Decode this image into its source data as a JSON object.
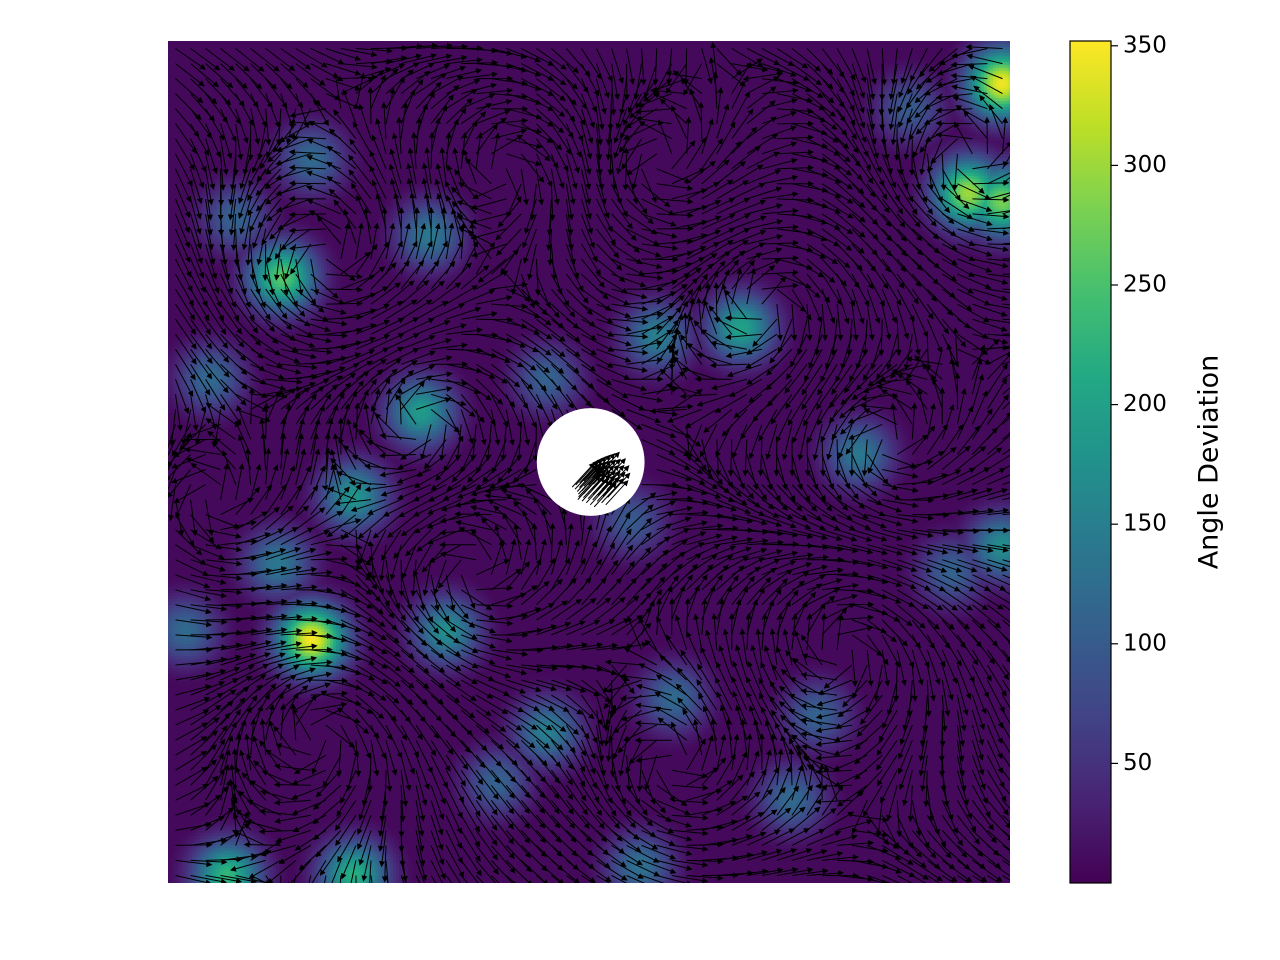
{
  "chart_data": {
    "type": "heatmap",
    "subtype": "quiver-over-heatmap",
    "title": "",
    "xlabel": "",
    "ylabel": "",
    "axes_visible": false,
    "grid": false,
    "colormap": "viridis",
    "colorbar": {
      "label": "Angle Deviation",
      "range": [
        0,
        352
      ],
      "ticks": [
        50,
        100,
        150,
        200,
        250,
        300,
        350
      ],
      "tick_labels": [
        "50",
        "100",
        "150",
        "200",
        "250",
        "300",
        "350"
      ],
      "placement": "right"
    },
    "field": {
      "x_range": [
        0,
        1
      ],
      "y_range": [
        0,
        1
      ],
      "background_level": 8,
      "obstacle": {
        "shape": "circle",
        "center": [
          0.502,
          0.5
        ],
        "radius": 0.064,
        "fill": "#ffffff"
      },
      "hotspots": [
        {
          "x": 0.17,
          "y": 0.29,
          "value": 350
        },
        {
          "x": 0.135,
          "y": 0.72,
          "value": 260
        },
        {
          "x": 0.95,
          "y": 0.82,
          "value": 300
        },
        {
          "x": 0.99,
          "y": 0.95,
          "value": 345
        },
        {
          "x": 0.99,
          "y": 0.81,
          "value": 280
        },
        {
          "x": 0.68,
          "y": 0.66,
          "value": 200
        },
        {
          "x": 0.58,
          "y": 0.65,
          "value": 150
        },
        {
          "x": 0.3,
          "y": 0.56,
          "value": 190
        },
        {
          "x": 0.22,
          "y": 0.46,
          "value": 180
        },
        {
          "x": 0.17,
          "y": 0.86,
          "value": 120
        },
        {
          "x": 0.08,
          "y": 0.79,
          "value": 110
        },
        {
          "x": 0.13,
          "y": 0.38,
          "value": 140
        },
        {
          "x": 0.33,
          "y": 0.3,
          "value": 170
        },
        {
          "x": 0.07,
          "y": 0.01,
          "value": 230
        },
        {
          "x": 0.22,
          "y": 0.01,
          "value": 220
        },
        {
          "x": 0.45,
          "y": 0.18,
          "value": 150
        },
        {
          "x": 0.82,
          "y": 0.51,
          "value": 140
        },
        {
          "x": 0.39,
          "y": 0.12,
          "value": 110
        },
        {
          "x": 0.6,
          "y": 0.22,
          "value": 120
        },
        {
          "x": 0.05,
          "y": 0.6,
          "value": 120
        },
        {
          "x": 0.93,
          "y": 0.37,
          "value": 110
        },
        {
          "x": 0.99,
          "y": 0.4,
          "value": 170
        },
        {
          "x": 0.55,
          "y": 0.43,
          "value": 100
        },
        {
          "x": 0.77,
          "y": 0.2,
          "value": 110
        },
        {
          "x": 0.02,
          "y": 0.3,
          "value": 120
        },
        {
          "x": 0.88,
          "y": 0.92,
          "value": 100
        },
        {
          "x": 0.56,
          "y": 0.02,
          "value": 130
        },
        {
          "x": 0.31,
          "y": 0.77,
          "value": 140
        },
        {
          "x": 0.74,
          "y": 0.1,
          "value": 120
        },
        {
          "x": 0.45,
          "y": 0.6,
          "value": 110
        }
      ],
      "quiver": {
        "color": "#000000",
        "grid": [
          56,
          56
        ],
        "vortices": [
          {
            "x": 0.19,
            "y": 0.74,
            "strength": 1.0,
            "sign": 1
          },
          {
            "x": 0.71,
            "y": 0.69,
            "strength": 0.9,
            "sign": -1
          },
          {
            "x": 0.36,
            "y": 0.37,
            "strength": 0.9,
            "sign": 1
          },
          {
            "x": 0.8,
            "y": 0.28,
            "strength": 1.0,
            "sign": -1
          },
          {
            "x": 0.18,
            "y": 0.18,
            "strength": 0.8,
            "sign": -1
          },
          {
            "x": 0.95,
            "y": 0.86,
            "strength": 0.8,
            "sign": 1
          },
          {
            "x": 0.58,
            "y": 0.85,
            "strength": 0.7,
            "sign": 1
          },
          {
            "x": 0.85,
            "y": 0.52,
            "strength": 0.8,
            "sign": 1
          },
          {
            "x": 0.4,
            "y": 0.85,
            "strength": 0.7,
            "sign": -1
          },
          {
            "x": 0.6,
            "y": 0.14,
            "strength": 0.7,
            "sign": 1
          },
          {
            "x": 0.05,
            "y": 0.45,
            "strength": 0.6,
            "sign": 1
          },
          {
            "x": 0.3,
            "y": 0.55,
            "strength": 0.7,
            "sign": -1
          }
        ],
        "mean_flow": [
          0.25,
          -0.12
        ]
      }
    }
  }
}
